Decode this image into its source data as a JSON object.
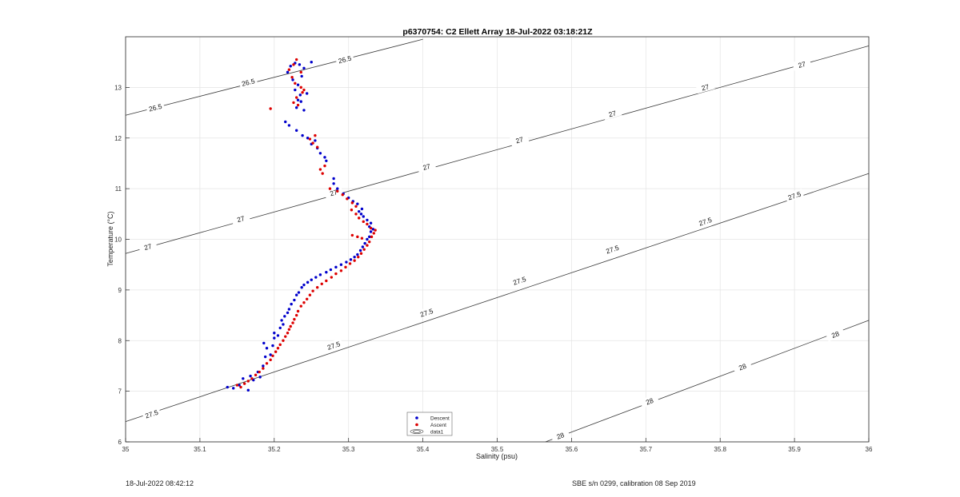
{
  "chart_data": {
    "type": "scatter",
    "title": "p6370754: C2 Ellett Array 18-Jul-2022 03:18:21Z",
    "xlabel": "Salinity (psu)",
    "ylabel": "Temperature (°C)",
    "xlim": [
      35,
      36
    ],
    "ylim": [
      6,
      14
    ],
    "xticks": [
      "35",
      "35.1",
      "35.2",
      "35.3",
      "35.4",
      "35.5",
      "35.6",
      "35.7",
      "35.8",
      "35.9",
      "36"
    ],
    "yticks": [
      "6",
      "7",
      "8",
      "9",
      "10",
      "11",
      "12",
      "13"
    ],
    "grid": true,
    "legend": {
      "placement": "bottom-center",
      "entries": [
        "Descent",
        "Ascent",
        "data1"
      ]
    },
    "contours": [
      {
        "label": "26.5",
        "points": [
          [
            35,
            12.45
          ],
          [
            35.4,
            13.95
          ]
        ],
        "label_positions": [
          [
            35.04,
            12.6
          ],
          [
            35.165,
            13.1
          ],
          [
            35.295,
            13.55
          ]
        ]
      },
      {
        "label": "27",
        "points": [
          [
            35,
            9.72
          ],
          [
            36,
            13.82
          ]
        ],
        "label_positions": [
          [
            35.03,
            9.85
          ],
          [
            35.155,
            10.4
          ],
          [
            35.28,
            10.92
          ],
          [
            35.405,
            11.43
          ],
          [
            35.53,
            11.96
          ],
          [
            35.655,
            12.48
          ],
          [
            35.78,
            13.0
          ],
          [
            35.91,
            13.45
          ]
        ]
      },
      {
        "label": "27.5",
        "points": [
          [
            35,
            6.4
          ],
          [
            36,
            11.3
          ]
        ],
        "label_positions": [
          [
            35.035,
            6.55
          ],
          [
            35.28,
            7.9
          ],
          [
            35.405,
            8.55
          ],
          [
            35.53,
            9.18
          ],
          [
            35.655,
            9.8
          ],
          [
            35.78,
            10.35
          ],
          [
            35.9,
            10.86
          ]
        ]
      },
      {
        "label": "28",
        "points": [
          [
            35.565,
            6
          ],
          [
            36,
            8.4
          ]
        ],
        "label_positions": [
          [
            35.585,
            6.12
          ],
          [
            35.705,
            6.8
          ],
          [
            35.83,
            7.48
          ],
          [
            35.955,
            8.12
          ]
        ]
      }
    ],
    "series": [
      {
        "name": "Descent",
        "color": "#0000cc",
        "points": [
          [
            35.137,
            7.08
          ],
          [
            35.145,
            7.06
          ],
          [
            35.153,
            7.12
          ],
          [
            35.158,
            7.25
          ],
          [
            35.165,
            7.02
          ],
          [
            35.168,
            7.3
          ],
          [
            35.172,
            7.22
          ],
          [
            35.178,
            7.38
          ],
          [
            35.181,
            7.28
          ],
          [
            35.185,
            7.5
          ],
          [
            35.188,
            7.68
          ],
          [
            35.19,
            7.85
          ],
          [
            35.186,
            7.95
          ],
          [
            35.195,
            7.72
          ],
          [
            35.198,
            7.9
          ],
          [
            35.2,
            8.05
          ],
          [
            35.2,
            8.15
          ],
          [
            35.205,
            8.1
          ],
          [
            35.208,
            8.25
          ],
          [
            35.21,
            8.4
          ],
          [
            35.212,
            8.32
          ],
          [
            35.214,
            8.48
          ],
          [
            35.218,
            8.55
          ],
          [
            35.22,
            8.62
          ],
          [
            35.223,
            8.72
          ],
          [
            35.227,
            8.8
          ],
          [
            35.23,
            8.9
          ],
          [
            35.233,
            8.95
          ],
          [
            35.237,
            9.05
          ],
          [
            35.24,
            9.1
          ],
          [
            35.245,
            9.15
          ],
          [
            35.25,
            9.2
          ],
          [
            35.256,
            9.25
          ],
          [
            35.262,
            9.3
          ],
          [
            35.27,
            9.35
          ],
          [
            35.276,
            9.4
          ],
          [
            35.283,
            9.45
          ],
          [
            35.29,
            9.5
          ],
          [
            35.297,
            9.55
          ],
          [
            35.303,
            9.6
          ],
          [
            35.308,
            9.65
          ],
          [
            35.312,
            9.7
          ],
          [
            35.316,
            9.78
          ],
          [
            35.319,
            9.85
          ],
          [
            35.322,
            9.92
          ],
          [
            35.325,
            10.0
          ],
          [
            35.328,
            10.05
          ],
          [
            35.33,
            10.15
          ],
          [
            35.333,
            10.2
          ],
          [
            35.328,
            10.25
          ],
          [
            35.33,
            10.32
          ],
          [
            35.325,
            10.38
          ],
          [
            35.32,
            10.45
          ],
          [
            35.317,
            10.5
          ],
          [
            35.314,
            10.55
          ],
          [
            35.318,
            10.6
          ],
          [
            35.312,
            10.7
          ],
          [
            35.306,
            10.75
          ],
          [
            35.3,
            10.82
          ],
          [
            35.293,
            10.9
          ],
          [
            35.285,
            11.0
          ],
          [
            35.28,
            11.1
          ],
          [
            35.28,
            11.2
          ],
          [
            35.27,
            11.55
          ],
          [
            35.268,
            11.62
          ],
          [
            35.262,
            11.7
          ],
          [
            35.258,
            11.8
          ],
          [
            35.25,
            11.88
          ],
          [
            35.255,
            11.95
          ],
          [
            35.245,
            12.0
          ],
          [
            35.238,
            12.05
          ],
          [
            35.23,
            12.15
          ],
          [
            35.22,
            12.25
          ],
          [
            35.215,
            12.32
          ],
          [
            35.23,
            12.6
          ],
          [
            35.232,
            12.75
          ],
          [
            35.235,
            12.85
          ],
          [
            35.228,
            12.95
          ],
          [
            35.232,
            13.05
          ],
          [
            35.225,
            13.15
          ],
          [
            35.218,
            13.3
          ],
          [
            35.222,
            13.42
          ],
          [
            35.228,
            13.48
          ],
          [
            35.234,
            13.45
          ],
          [
            35.25,
            13.5
          ],
          [
            35.24,
            13.38
          ],
          [
            35.237,
            13.22
          ],
          [
            35.24,
            12.55
          ],
          [
            35.236,
            12.72
          ],
          [
            35.244,
            12.88
          ]
        ]
      },
      {
        "name": "Ascent",
        "color": "#dd0000",
        "points": [
          [
            35.15,
            7.12
          ],
          [
            35.155,
            7.08
          ],
          [
            35.16,
            7.15
          ],
          [
            35.165,
            7.2
          ],
          [
            35.17,
            7.25
          ],
          [
            35.175,
            7.32
          ],
          [
            35.18,
            7.38
          ],
          [
            35.185,
            7.45
          ],
          [
            35.19,
            7.55
          ],
          [
            35.195,
            7.62
          ],
          [
            35.198,
            7.7
          ],
          [
            35.202,
            7.78
          ],
          [
            35.205,
            7.85
          ],
          [
            35.208,
            7.92
          ],
          [
            35.212,
            8.0
          ],
          [
            35.215,
            8.08
          ],
          [
            35.218,
            8.15
          ],
          [
            35.22,
            8.22
          ],
          [
            35.222,
            8.28
          ],
          [
            35.225,
            8.35
          ],
          [
            35.227,
            8.42
          ],
          [
            35.23,
            8.5
          ],
          [
            35.232,
            8.58
          ],
          [
            35.236,
            8.68
          ],
          [
            35.24,
            8.75
          ],
          [
            35.244,
            8.82
          ],
          [
            35.248,
            8.9
          ],
          [
            35.252,
            8.98
          ],
          [
            35.258,
            9.05
          ],
          [
            35.264,
            9.12
          ],
          [
            35.27,
            9.18
          ],
          [
            35.277,
            9.25
          ],
          [
            35.283,
            9.32
          ],
          [
            35.29,
            9.38
          ],
          [
            35.296,
            9.45
          ],
          [
            35.302,
            9.52
          ],
          [
            35.308,
            9.58
          ],
          [
            35.313,
            9.65
          ],
          [
            35.317,
            9.72
          ],
          [
            35.321,
            9.8
          ],
          [
            35.325,
            9.88
          ],
          [
            35.328,
            9.95
          ],
          [
            35.331,
            10.05
          ],
          [
            35.334,
            10.12
          ],
          [
            35.336,
            10.18
          ],
          [
            35.33,
            10.22
          ],
          [
            35.325,
            10.3
          ],
          [
            35.32,
            10.35
          ],
          [
            35.314,
            10.42
          ],
          [
            35.31,
            10.5
          ],
          [
            35.304,
            10.58
          ],
          [
            35.31,
            10.65
          ],
          [
            35.305,
            10.72
          ],
          [
            35.298,
            10.8
          ],
          [
            35.292,
            10.88
          ],
          [
            35.285,
            10.95
          ],
          [
            35.275,
            11.0
          ],
          [
            35.265,
            11.3
          ],
          [
            35.262,
            11.38
          ],
          [
            35.268,
            11.45
          ],
          [
            35.258,
            11.82
          ],
          [
            35.252,
            11.9
          ],
          [
            35.248,
            11.98
          ],
          [
            35.255,
            12.05
          ],
          [
            35.195,
            12.58
          ],
          [
            35.226,
            12.7
          ],
          [
            35.23,
            12.8
          ],
          [
            35.238,
            12.9
          ],
          [
            35.236,
            13.0
          ],
          [
            35.228,
            13.08
          ],
          [
            35.224,
            13.2
          ],
          [
            35.22,
            13.35
          ],
          [
            35.226,
            13.45
          ],
          [
            35.23,
            13.55
          ],
          [
            35.236,
            13.3
          ],
          [
            35.232,
            12.65
          ],
          [
            35.24,
            12.95
          ],
          [
            35.305,
            10.08
          ],
          [
            35.312,
            10.05
          ],
          [
            35.318,
            10.02
          ]
        ]
      }
    ]
  },
  "footer": {
    "left": "18-Jul-2022 08:42:12",
    "right": "SBE s/n 0299, calibration 08 Sep 2019"
  }
}
